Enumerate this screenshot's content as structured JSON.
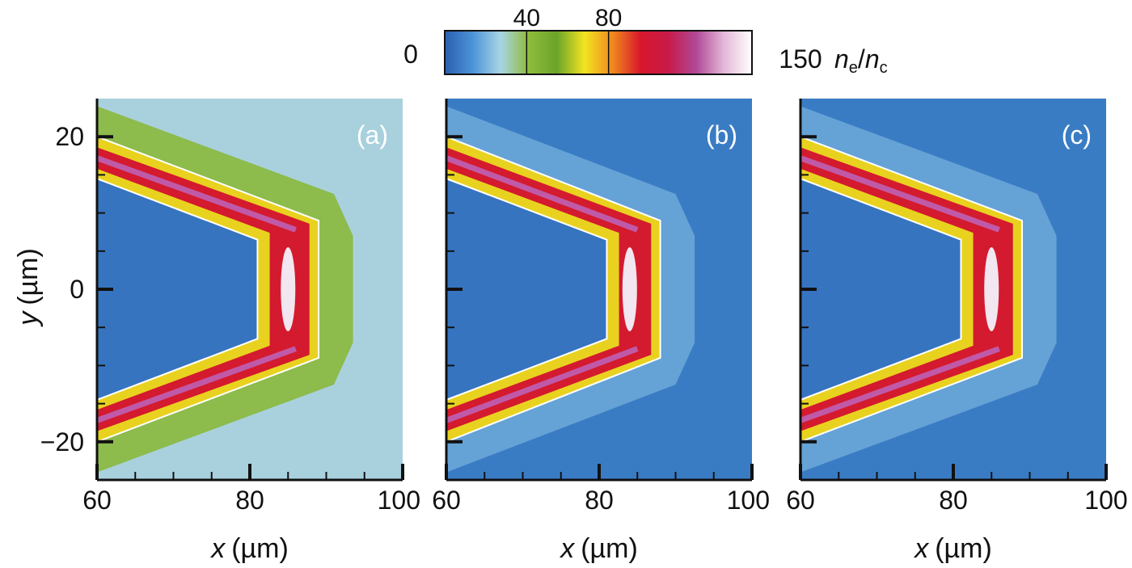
{
  "chart_data": {
    "type": "heatmap",
    "colorbar": {
      "min_label": "0",
      "max_label": "150",
      "tick_labels": [
        "40",
        "80"
      ],
      "ticks": [
        40,
        80
      ],
      "range": [
        0,
        150
      ],
      "quantity_label": {
        "n1": "n",
        "sub1": "e",
        "slash": "/",
        "n2": "n",
        "sub2": "c"
      },
      "colors": [
        "#2a5fb0",
        "#4c93d8",
        "#a8d4e4",
        "#8fbc3b",
        "#6aa42a",
        "#f2e421",
        "#f08a1e",
        "#d8182b",
        "#c81a4a",
        "#b04896",
        "#e4b8d8",
        "#ffffff"
      ]
    },
    "xlabel": {
      "var": "x",
      "unit": "(µm)"
    },
    "ylabel": {
      "var": "y",
      "unit": "(µm)"
    },
    "xlim": [
      60,
      100
    ],
    "ylim": [
      -25,
      25
    ],
    "x_tick_labels": [
      "60",
      "80",
      "100"
    ],
    "x_ticks": [
      60,
      80,
      100
    ],
    "y_tick_labels": [
      "20",
      "0",
      "−20"
    ],
    "y_ticks": [
      20,
      0,
      -20
    ],
    "panels": [
      {
        "label": "(a)",
        "background": "#a9d1dd",
        "halo": "#8ab83c",
        "cone_outer_x": 89,
        "cone_inner_x": 81,
        "tip_half_height": 9
      },
      {
        "label": "(b)",
        "background": "#3a7cc4",
        "halo": "#6aa6d8",
        "cone_outer_x": 88,
        "cone_inner_x": 81,
        "tip_half_height": 9
      },
      {
        "label": "(c)",
        "background": "#3a7cc4",
        "halo": "#6aa6d8",
        "cone_outer_x": 89,
        "cone_inner_x": 81,
        "tip_half_height": 9
      }
    ]
  }
}
